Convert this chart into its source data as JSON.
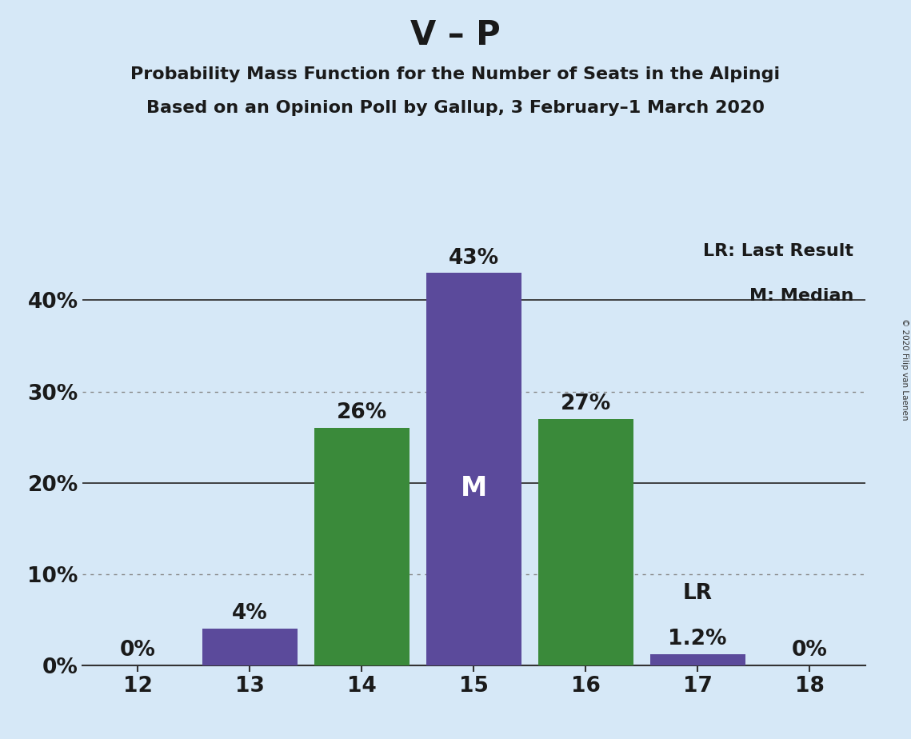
{
  "title": "V – P",
  "subtitle1": "Probability Mass Function for the Number of Seats in the Alpingi",
  "subtitle2": "Based on an Opinion Poll by Gallup, 3 February–1 March 2020",
  "copyright": "© 2020 Filip van Laenen",
  "seats": [
    12,
    13,
    14,
    15,
    16,
    17,
    18
  ],
  "values": [
    0.0,
    4.0,
    26.0,
    43.0,
    27.0,
    1.2,
    0.0
  ],
  "bar_colors": [
    "#5b4a9b",
    "#5b4a9b",
    "#3a8a3a",
    "#5b4a9b",
    "#3a8a3a",
    "#5b4a9b",
    "#5b4a9b"
  ],
  "median_seat": 15,
  "last_result_seat": 17,
  "background_color": "#d6e8f7",
  "grid_color": "#888888",
  "label_fontsize": 19,
  "title_fontsize": 30,
  "subtitle_fontsize": 16,
  "tick_fontsize": 19,
  "ytick_labels": [
    "0%",
    "10%",
    "20%",
    "30%",
    "40%"
  ],
  "ytick_values": [
    0,
    10,
    20,
    30,
    40
  ],
  "ylim": [
    0,
    47
  ],
  "legend_text1": "LR: Last Result",
  "legend_text2": "M: Median",
  "dotted_grid_at": [
    10,
    30
  ],
  "solid_grid_at": [
    20,
    40
  ]
}
